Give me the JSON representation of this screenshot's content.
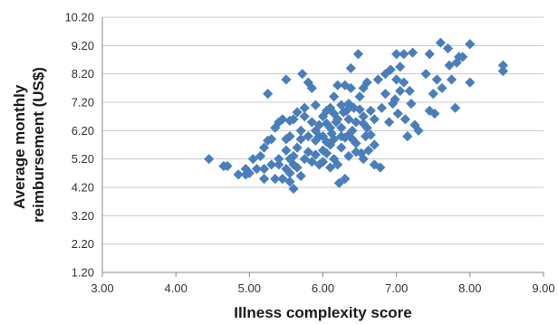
{
  "chart_data": {
    "type": "scatter",
    "title": "",
    "xlabel": "Illness complexity score",
    "ylabel": [
      "Average monthly",
      "reimbursement (US$)"
    ],
    "xlim": [
      3.0,
      9.0
    ],
    "ylim": [
      1.2,
      10.2
    ],
    "x_ticks": [
      "3.00",
      "4.00",
      "5.00",
      "6.00",
      "7.00",
      "8.00",
      "9.00"
    ],
    "y_ticks": [
      "1.20",
      "2.20",
      "3.20",
      "4.20",
      "5.20",
      "6.20",
      "7.20",
      "8.20",
      "9.20",
      "10.20"
    ],
    "grid": "horizontal",
    "legend": "none",
    "marker": "diamond",
    "marker_color": "#4a7ebb",
    "series": [
      {
        "points": [
          [
            4.45,
            5.2
          ],
          [
            4.65,
            4.95
          ],
          [
            4.7,
            4.95
          ],
          [
            4.85,
            4.65
          ],
          [
            4.95,
            4.85
          ],
          [
            4.95,
            4.65
          ],
          [
            5.05,
            5.2
          ],
          [
            5.1,
            4.85
          ],
          [
            5.15,
            5.3
          ],
          [
            5.2,
            4.85
          ],
          [
            5.2,
            5.6
          ],
          [
            5.2,
            4.5
          ],
          [
            5.25,
            7.5
          ],
          [
            5.25,
            5.85
          ],
          [
            5.3,
            5.9
          ],
          [
            5.35,
            6.3
          ],
          [
            5.35,
            4.5
          ],
          [
            5.4,
            5.0
          ],
          [
            5.4,
            5.2
          ],
          [
            5.4,
            6.5
          ],
          [
            5.45,
            6.6
          ],
          [
            5.45,
            4.5
          ],
          [
            5.5,
            8.0
          ],
          [
            5.5,
            5.9
          ],
          [
            5.5,
            5.5
          ],
          [
            5.5,
            4.85
          ],
          [
            5.55,
            6.0
          ],
          [
            5.55,
            6.55
          ],
          [
            5.55,
            4.7
          ],
          [
            5.55,
            4.4
          ],
          [
            5.6,
            5.3
          ],
          [
            5.6,
            4.15
          ],
          [
            5.6,
            6.6
          ],
          [
            5.6,
            5.0
          ],
          [
            5.65,
            4.9
          ],
          [
            5.65,
            6.85
          ],
          [
            5.65,
            5.6
          ],
          [
            5.7,
            5.9
          ],
          [
            5.7,
            4.6
          ],
          [
            5.7,
            6.2
          ],
          [
            5.72,
            8.2
          ],
          [
            5.75,
            7.0
          ],
          [
            5.75,
            5.2
          ],
          [
            5.8,
            5.45
          ],
          [
            5.8,
            7.9
          ],
          [
            5.8,
            6.0
          ],
          [
            5.85,
            7.7
          ],
          [
            5.85,
            6.5
          ],
          [
            5.85,
            5.1
          ],
          [
            5.9,
            7.1
          ],
          [
            5.9,
            6.2
          ],
          [
            5.9,
            5.85
          ],
          [
            5.95,
            6.0
          ],
          [
            5.95,
            6.4
          ],
          [
            5.95,
            5.0
          ],
          [
            6.0,
            5.5
          ],
          [
            6.0,
            6.7
          ],
          [
            6.0,
            6.0
          ],
          [
            6.0,
            5.1
          ],
          [
            6.05,
            5.8
          ],
          [
            6.05,
            6.9
          ],
          [
            6.05,
            5.4
          ],
          [
            6.1,
            6.3
          ],
          [
            6.1,
            7.0
          ],
          [
            6.1,
            5.7
          ],
          [
            6.12,
            6.1
          ],
          [
            6.15,
            6.8
          ],
          [
            6.15,
            5.9
          ],
          [
            6.15,
            5.2
          ],
          [
            6.18,
            6.5
          ],
          [
            6.2,
            7.8
          ],
          [
            6.2,
            6.6
          ],
          [
            6.2,
            5.0
          ],
          [
            6.22,
            4.35
          ],
          [
            6.25,
            7.1
          ],
          [
            6.25,
            6.3
          ],
          [
            6.25,
            5.6
          ],
          [
            6.28,
            6.85
          ],
          [
            6.3,
            7.8
          ],
          [
            6.3,
            5.95
          ],
          [
            6.3,
            4.5
          ],
          [
            6.32,
            6.9
          ],
          [
            6.35,
            6.6
          ],
          [
            6.35,
            5.3
          ],
          [
            6.38,
            7.7
          ],
          [
            6.38,
            8.4
          ],
          [
            6.4,
            6.2
          ],
          [
            6.4,
            5.9
          ],
          [
            6.42,
            7.0
          ],
          [
            6.45,
            6.5
          ],
          [
            6.45,
            5.75
          ],
          [
            6.48,
            8.9
          ],
          [
            6.5,
            7.4
          ],
          [
            6.5,
            6.95
          ],
          [
            6.52,
            5.4
          ],
          [
            6.55,
            7.7
          ],
          [
            6.55,
            6.7
          ],
          [
            6.55,
            5.2
          ],
          [
            6.58,
            6.0
          ],
          [
            6.6,
            7.9
          ],
          [
            6.6,
            6.3
          ],
          [
            6.62,
            5.5
          ],
          [
            6.65,
            6.9
          ],
          [
            6.7,
            6.6
          ],
          [
            6.7,
            5.0
          ],
          [
            6.75,
            8.0
          ],
          [
            6.78,
            4.9
          ],
          [
            6.8,
            7.0
          ],
          [
            6.85,
            7.5
          ],
          [
            6.85,
            8.2
          ],
          [
            6.9,
            6.5
          ],
          [
            6.92,
            8.35
          ],
          [
            6.95,
            7.15
          ],
          [
            6.98,
            7.3
          ],
          [
            7.0,
            8.9
          ],
          [
            7.0,
            8.0
          ],
          [
            7.02,
            6.8
          ],
          [
            7.05,
            7.6
          ],
          [
            7.05,
            8.45
          ],
          [
            7.1,
            8.9
          ],
          [
            7.1,
            7.9
          ],
          [
            7.12,
            6.6
          ],
          [
            7.15,
            6.0
          ],
          [
            7.18,
            7.6
          ],
          [
            7.2,
            7.15
          ],
          [
            7.22,
            8.95
          ],
          [
            7.25,
            6.4
          ],
          [
            7.3,
            6.2
          ],
          [
            7.4,
            8.2
          ],
          [
            7.45,
            8.9
          ],
          [
            7.45,
            6.9
          ],
          [
            7.5,
            7.5
          ],
          [
            7.52,
            6.8
          ],
          [
            7.55,
            8.0
          ],
          [
            7.6,
            9.3
          ],
          [
            7.62,
            7.7
          ],
          [
            7.7,
            9.1
          ],
          [
            7.72,
            8.5
          ],
          [
            7.75,
            8.0
          ],
          [
            7.8,
            7.0
          ],
          [
            7.82,
            8.6
          ],
          [
            7.85,
            8.8
          ],
          [
            7.9,
            8.8
          ],
          [
            8.0,
            9.25
          ],
          [
            8.0,
            7.9
          ],
          [
            8.45,
            8.3
          ],
          [
            8.45,
            8.5
          ],
          [
            5.0,
            4.7
          ],
          [
            5.3,
            5.0
          ],
          [
            5.75,
            6.7
          ],
          [
            6.15,
            7.4
          ],
          [
            6.45,
            5.45
          ],
          [
            6.35,
            7.15
          ],
          [
            5.9,
            5.35
          ],
          [
            6.05,
            6.45
          ],
          [
            6.25,
            6.0
          ],
          [
            6.55,
            6.45
          ],
          [
            6.7,
            5.7
          ],
          [
            5.55,
            5.2
          ],
          [
            6.1,
            4.9
          ],
          [
            6.35,
            6.05
          ],
          [
            6.65,
            6.05
          ]
        ]
      }
    ]
  }
}
